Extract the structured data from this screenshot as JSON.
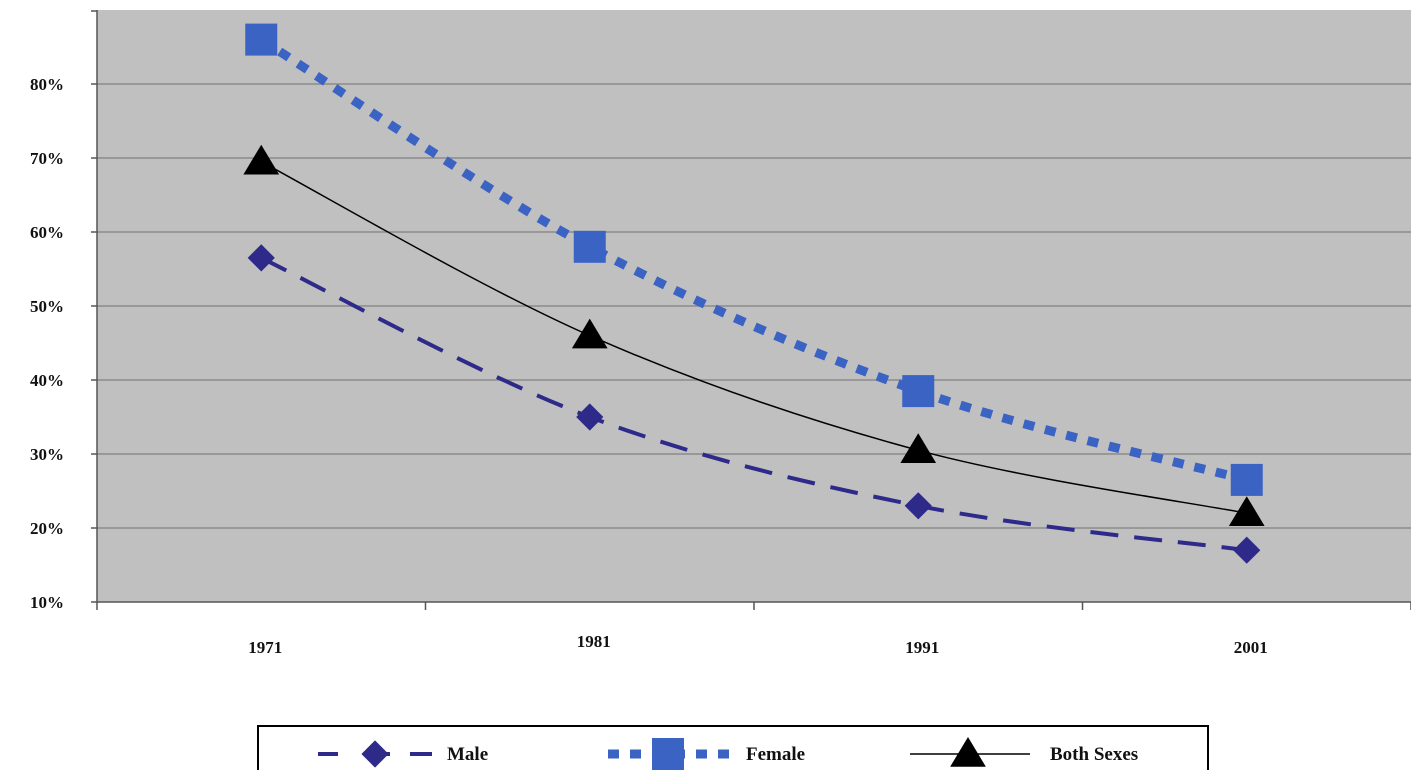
{
  "chart_data": {
    "type": "line",
    "title": "",
    "xlabel": "",
    "ylabel": "",
    "categories": [
      "1971",
      "1981",
      "1991",
      "2001"
    ],
    "ylim": [
      10,
      90
    ],
    "yticks": [
      {
        "value": 10,
        "label": "10%"
      },
      {
        "value": 20,
        "label": "20%"
      },
      {
        "value": 30,
        "label": "30%"
      },
      {
        "value": 40,
        "label": "40%"
      },
      {
        "value": 50,
        "label": "50%"
      },
      {
        "value": 60,
        "label": "60%"
      },
      {
        "value": 70,
        "label": "70%"
      },
      {
        "value": 80,
        "label": "80%"
      }
    ],
    "grid": true,
    "legend": "bottom",
    "series": [
      {
        "name": "Male",
        "values": [
          56.5,
          35,
          23,
          17
        ],
        "color": "#2e2a8a",
        "marker": "diamond",
        "line": "dashed"
      },
      {
        "name": "Female",
        "values": [
          86,
          58,
          38.5,
          26.5
        ],
        "color": "#3a63c4",
        "marker": "square",
        "line": "dotted"
      },
      {
        "name": "Both Sexes",
        "values": [
          69.5,
          46,
          30.5,
          22
        ],
        "color": "#000000",
        "marker": "triangle",
        "line": "solid"
      }
    ],
    "colors": {
      "plot_background": "#c0c0c0",
      "gridline": "#8a8a8a"
    }
  }
}
